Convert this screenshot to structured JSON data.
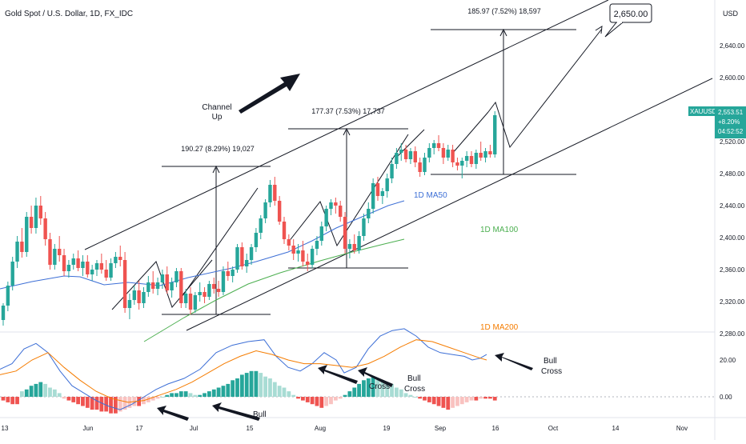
{
  "header": {
    "title": "Gold Spot / U.S. Dollar, 1D, FX_IDC",
    "currency": "USD"
  },
  "colors": {
    "up": "#26a69a",
    "down": "#ef5350",
    "ma50": "#3d6fd6",
    "ma100": "#4caf50",
    "ma200": "#f57c00",
    "macd": "#3d6fd6",
    "signal": "#f57c00",
    "price_tag": "#26a69a"
  },
  "chart_data": {
    "type": "candlestick",
    "price_axis": {
      "ticks": [
        "2,640.00",
        "2,600.00",
        "2,560.00",
        "2,520.00",
        "2,480.00",
        "2,440.00",
        "2,400.00",
        "2,360.00",
        "2,320.00",
        "2,280.00"
      ],
      "ylim": [
        2270,
        2678
      ]
    },
    "indicator_axis": {
      "ticks": [
        "20.00",
        "0.00"
      ]
    },
    "time_axis": {
      "ticks": [
        "13",
        "Jun",
        "17",
        "Jul",
        "15",
        "Aug",
        "19",
        "Sep",
        "16",
        "Oct",
        "14",
        "Nov"
      ]
    },
    "price_tag": {
      "symbol": "XAUUSD",
      "price": "2,553.51",
      "change": "+8.20%",
      "countdown": "04:52:52"
    },
    "candles": [
      [
        2297,
        2318,
        2290,
        2315
      ],
      [
        2315,
        2345,
        2308,
        2340
      ],
      [
        2340,
        2376,
        2334,
        2370
      ],
      [
        2370,
        2402,
        2362,
        2395
      ],
      [
        2395,
        2412,
        2375,
        2382
      ],
      [
        2382,
        2432,
        2376,
        2426
      ],
      [
        2426,
        2440,
        2405,
        2412
      ],
      [
        2412,
        2450,
        2405,
        2440
      ],
      [
        2440,
        2452,
        2416,
        2424
      ],
      [
        2424,
        2432,
        2390,
        2398
      ],
      [
        2398,
        2406,
        2360,
        2366
      ],
      [
        2366,
        2392,
        2360,
        2386
      ],
      [
        2386,
        2402,
        2370,
        2378
      ],
      [
        2378,
        2386,
        2352,
        2358
      ],
      [
        2358,
        2372,
        2350,
        2366
      ],
      [
        2366,
        2380,
        2360,
        2374
      ],
      [
        2374,
        2384,
        2358,
        2362
      ],
      [
        2362,
        2378,
        2352,
        2370
      ],
      [
        2370,
        2378,
        2350,
        2354
      ],
      [
        2354,
        2366,
        2346,
        2360
      ],
      [
        2360,
        2372,
        2352,
        2368
      ],
      [
        2368,
        2380,
        2355,
        2360
      ],
      [
        2360,
        2372,
        2346,
        2350
      ],
      [
        2350,
        2374,
        2346,
        2368
      ],
      [
        2368,
        2382,
        2362,
        2376
      ],
      [
        2376,
        2390,
        2364,
        2372
      ],
      [
        2372,
        2382,
        2306,
        2312
      ],
      [
        2312,
        2330,
        2298,
        2322
      ],
      [
        2322,
        2340,
        2316,
        2334
      ],
      [
        2334,
        2346,
        2310,
        2318
      ],
      [
        2318,
        2338,
        2312,
        2332
      ],
      [
        2332,
        2352,
        2326,
        2344
      ],
      [
        2344,
        2358,
        2330,
        2336
      ],
      [
        2336,
        2350,
        2328,
        2344
      ],
      [
        2344,
        2360,
        2336,
        2354
      ],
      [
        2354,
        2364,
        2330,
        2334
      ],
      [
        2334,
        2350,
        2325,
        2344
      ],
      [
        2344,
        2362,
        2338,
        2358
      ],
      [
        2358,
        2362,
        2312,
        2318
      ],
      [
        2318,
        2336,
        2312,
        2330
      ],
      [
        2330,
        2338,
        2304,
        2310
      ],
      [
        2310,
        2332,
        2306,
        2328
      ],
      [
        2328,
        2344,
        2320,
        2332
      ],
      [
        2332,
        2338,
        2318,
        2326
      ],
      [
        2326,
        2346,
        2322,
        2342
      ],
      [
        2342,
        2350,
        2330,
        2336
      ],
      [
        2336,
        2346,
        2326,
        2332
      ],
      [
        2332,
        2364,
        2328,
        2358
      ],
      [
        2358,
        2370,
        2346,
        2352
      ],
      [
        2352,
        2364,
        2344,
        2360
      ],
      [
        2360,
        2392,
        2356,
        2388
      ],
      [
        2388,
        2394,
        2360,
        2364
      ],
      [
        2364,
        2380,
        2356,
        2372
      ],
      [
        2372,
        2392,
        2366,
        2388
      ],
      [
        2388,
        2412,
        2382,
        2406
      ],
      [
        2406,
        2428,
        2398,
        2424
      ],
      [
        2424,
        2448,
        2418,
        2444
      ],
      [
        2444,
        2472,
        2438,
        2466
      ],
      [
        2466,
        2476,
        2440,
        2446
      ],
      [
        2446,
        2452,
        2416,
        2420
      ],
      [
        2420,
        2426,
        2392,
        2398
      ],
      [
        2398,
        2404,
        2384,
        2390
      ],
      [
        2390,
        2398,
        2372,
        2380
      ],
      [
        2380,
        2392,
        2370,
        2384
      ],
      [
        2384,
        2396,
        2364,
        2370
      ],
      [
        2370,
        2380,
        2358,
        2366
      ],
      [
        2366,
        2390,
        2362,
        2386
      ],
      [
        2386,
        2402,
        2378,
        2396
      ],
      [
        2396,
        2420,
        2390,
        2414
      ],
      [
        2414,
        2440,
        2408,
        2436
      ],
      [
        2436,
        2448,
        2428,
        2444
      ],
      [
        2444,
        2450,
        2430,
        2440
      ],
      [
        2440,
        2446,
        2420,
        2426
      ],
      [
        2426,
        2432,
        2380,
        2386
      ],
      [
        2386,
        2398,
        2374,
        2392
      ],
      [
        2392,
        2404,
        2380,
        2384
      ],
      [
        2384,
        2408,
        2380,
        2402
      ],
      [
        2402,
        2430,
        2396,
        2424
      ],
      [
        2424,
        2444,
        2418,
        2436
      ],
      [
        2436,
        2474,
        2430,
        2468
      ],
      [
        2468,
        2476,
        2446,
        2452
      ],
      [
        2452,
        2462,
        2442,
        2458
      ],
      [
        2458,
        2480,
        2450,
        2474
      ],
      [
        2474,
        2500,
        2468,
        2492
      ],
      [
        2492,
        2512,
        2486,
        2506
      ],
      [
        2506,
        2518,
        2496,
        2510
      ],
      [
        2510,
        2516,
        2494,
        2498
      ],
      [
        2498,
        2512,
        2492,
        2508
      ],
      [
        2508,
        2514,
        2488,
        2494
      ],
      [
        2494,
        2500,
        2476,
        2482
      ],
      [
        2482,
        2506,
        2478,
        2500
      ],
      [
        2500,
        2518,
        2494,
        2512
      ],
      [
        2512,
        2522,
        2504,
        2518
      ],
      [
        2518,
        2528,
        2508,
        2512
      ],
      [
        2512,
        2518,
        2492,
        2500
      ],
      [
        2500,
        2516,
        2496,
        2510
      ],
      [
        2510,
        2516,
        2488,
        2494
      ],
      [
        2494,
        2500,
        2484,
        2490
      ],
      [
        2490,
        2500,
        2474,
        2496
      ],
      [
        2496,
        2508,
        2488,
        2502
      ],
      [
        2502,
        2508,
        2488,
        2492
      ],
      [
        2492,
        2510,
        2486,
        2506
      ],
      [
        2506,
        2520,
        2496,
        2500
      ],
      [
        2500,
        2512,
        2494,
        2508
      ],
      [
        2508,
        2516,
        2500,
        2504
      ],
      [
        2504,
        2558,
        2500,
        2553
      ]
    ],
    "ma50": [
      [
        0,
        2336
      ],
      [
        40,
        2345
      ],
      [
        80,
        2352
      ],
      [
        100,
        2351
      ],
      [
        130,
        2341
      ],
      [
        160,
        2344
      ],
      [
        200,
        2340
      ],
      [
        235,
        2350
      ],
      [
        290,
        2362
      ],
      [
        320,
        2370
      ],
      [
        360,
        2382
      ],
      [
        390,
        2396
      ],
      [
        420,
        2412
      ],
      [
        450,
        2425
      ],
      [
        485,
        2440
      ],
      [
        505,
        2446
      ]
    ],
    "ma100": [
      [
        180,
        2270
      ],
      [
        230,
        2300
      ],
      [
        270,
        2322
      ],
      [
        310,
        2342
      ],
      [
        350,
        2356
      ],
      [
        400,
        2371
      ],
      [
        440,
        2382
      ],
      [
        480,
        2392
      ],
      [
        505,
        2398
      ]
    ],
    "macd": [
      [
        0,
        15
      ],
      [
        15,
        18
      ],
      [
        30,
        26
      ],
      [
        45,
        29
      ],
      [
        60,
        24
      ],
      [
        75,
        14
      ],
      [
        90,
        6
      ],
      [
        105,
        2
      ],
      [
        120,
        -2
      ],
      [
        135,
        -5
      ],
      [
        150,
        -7
      ],
      [
        165,
        -4
      ],
      [
        180,
        0
      ],
      [
        195,
        4
      ],
      [
        210,
        7
      ],
      [
        230,
        10
      ],
      [
        250,
        15
      ],
      [
        270,
        24
      ],
      [
        290,
        28
      ],
      [
        310,
        30
      ],
      [
        330,
        31
      ],
      [
        345,
        22
      ],
      [
        360,
        16
      ],
      [
        375,
        14
      ],
      [
        390,
        18
      ],
      [
        405,
        24
      ],
      [
        420,
        20
      ],
      [
        430,
        13
      ],
      [
        445,
        16
      ],
      [
        460,
        26
      ],
      [
        475,
        33
      ],
      [
        490,
        36
      ],
      [
        505,
        37
      ],
      [
        520,
        33
      ],
      [
        535,
        27
      ],
      [
        550,
        24
      ],
      [
        565,
        23
      ],
      [
        580,
        22
      ],
      [
        590,
        20
      ],
      [
        600,
        21
      ],
      [
        608,
        23
      ]
    ],
    "signal": [
      [
        0,
        12
      ],
      [
        20,
        14
      ],
      [
        40,
        20
      ],
      [
        60,
        24
      ],
      [
        80,
        16
      ],
      [
        100,
        9
      ],
      [
        120,
        3
      ],
      [
        140,
        -1
      ],
      [
        160,
        -3
      ],
      [
        180,
        -2
      ],
      [
        200,
        1
      ],
      [
        220,
        4
      ],
      [
        240,
        8
      ],
      [
        260,
        13
      ],
      [
        280,
        18
      ],
      [
        300,
        22
      ],
      [
        320,
        25
      ],
      [
        340,
        23
      ],
      [
        360,
        20
      ],
      [
        380,
        18
      ],
      [
        400,
        18
      ],
      [
        420,
        17
      ],
      [
        440,
        16
      ],
      [
        460,
        18
      ],
      [
        480,
        22
      ],
      [
        500,
        27
      ],
      [
        520,
        31
      ],
      [
        540,
        30
      ],
      [
        560,
        27
      ],
      [
        580,
        24
      ],
      [
        600,
        21
      ],
      [
        608,
        20
      ]
    ],
    "hist": [
      -2,
      -3,
      -4,
      -4,
      3,
      4,
      6,
      7,
      8,
      7,
      5,
      4,
      2,
      -1,
      -2,
      -3,
      -4,
      -5,
      -6,
      -7,
      -7,
      -8,
      -8,
      -9,
      -9,
      -8,
      -7,
      -6,
      -5,
      -5,
      -4,
      -3,
      -2,
      -1,
      0,
      1,
      2,
      2,
      3,
      3,
      2,
      1,
      1,
      2,
      3,
      4,
      5,
      6,
      7,
      9,
      10,
      12,
      13,
      14,
      14,
      13,
      11,
      10,
      8,
      6,
      5,
      3,
      1,
      -1,
      -2,
      -3,
      -4,
      -5,
      -6,
      -5,
      -4,
      -2,
      -1,
      1,
      3,
      5,
      7,
      9,
      10,
      11,
      10,
      9,
      8,
      7,
      5,
      4,
      2,
      1,
      0,
      -1,
      -2,
      -3,
      -4,
      -5,
      -6,
      -7,
      -6,
      -5,
      -4,
      -3,
      -2,
      -2,
      -1,
      -1,
      -1,
      -2
    ],
    "annotations": {
      "channel_label": "Channel\nUp",
      "measure1": "190.27 (8.29%) 19,027",
      "measure2": "177.37 (7.53%) 17,737",
      "measure3": "185.97 (7.52%) 18,597",
      "target": "2,650.00",
      "ma50_label": "1D MA50",
      "ma100_label": "1D MA100",
      "ma200_label": "1D MA200",
      "bull_cross_1": "Bull\nCross",
      "bull_cross_2": "Bull\nCross",
      "bull_cross_3": "Bull\nCross",
      "bull_cross_4": "Bull"
    }
  }
}
